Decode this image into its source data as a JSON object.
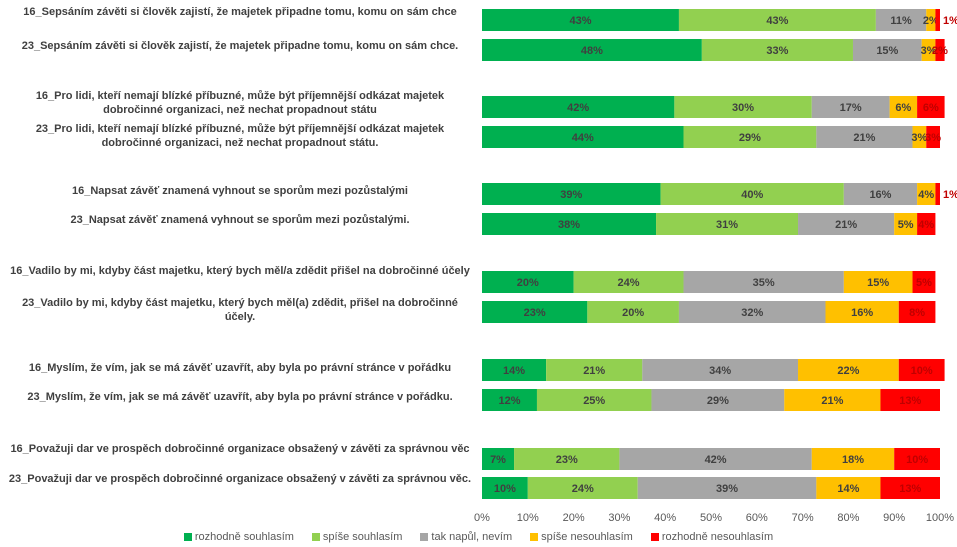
{
  "chart_data": {
    "type": "bar",
    "orientation": "horizontal",
    "stacked": "percent",
    "categories": [
      "16_Sepsáním závěti si člověk zajistí, že majetek připadne tomu, komu on sám chce",
      "23_Sepsáním závěti si člověk zajistí, že majetek připadne tomu, komu on sám chce.",
      "16_Pro lidi, kteří nemají blízké příbuzné, může být příjemnější odkázat majetek dobročinné organizaci, než nechat propadnout státu",
      "23_Pro lidi, kteří nemají blízké příbuzné, může být příjemnější odkázat majetek dobročinné organizaci, než nechat propadnout státu.",
      "16_Napsat závěť znamená vyhnout se sporům mezi pozůstalými",
      "23_Napsat závěť znamená vyhnout se sporům mezi pozůstalými.",
      "16_Vadilo by mi, kdyby část majetku, který bych měl/a zdědit přišel na dobročinné účely",
      "23_Vadilo by mi, kdyby část majetku, který bych měl(a) zdědit, přišel na dobročinné účely.",
      "16_Myslím, že vím, jak se má závěť uzavřít, aby byla po právní stránce v pořádku",
      "23_Myslím, že vím, jak se má závěť uzavřít, aby byla po právní stránce v pořádku.",
      "16_Považuji dar ve prospěch dobročinné organizace obsažený v závěti za správnou věc",
      "23_Považuji dar ve prospěch dobročinné organizace obsažený v závěti za správnou věc."
    ],
    "series": [
      {
        "name": "rozhodně souhlasím",
        "color": "#00b050",
        "values": [
          43,
          48,
          42,
          44,
          39,
          38,
          20,
          23,
          14,
          12,
          7,
          10
        ]
      },
      {
        "name": "spíše souhlasím",
        "color": "#92d050",
        "values": [
          43,
          33,
          30,
          29,
          40,
          31,
          24,
          20,
          21,
          25,
          23,
          24
        ]
      },
      {
        "name": "tak napůl, nevím",
        "color": "#a6a6a6",
        "values": [
          11,
          15,
          17,
          21,
          16,
          21,
          35,
          32,
          34,
          29,
          42,
          39
        ]
      },
      {
        "name": "spíše nesouhlasím",
        "color": "#ffc000",
        "values": [
          2,
          3,
          6,
          3,
          4,
          5,
          15,
          16,
          22,
          21,
          18,
          14
        ]
      },
      {
        "name": "rozhodně nesouhlasím",
        "color": "#ff0000",
        "values": [
          1,
          2,
          6,
          3,
          1,
          4,
          5,
          8,
          10,
          13,
          10,
          13
        ]
      }
    ],
    "xlim": [
      0,
      100
    ],
    "xticks": [
      "0%",
      "10%",
      "20%",
      "30%",
      "40%",
      "50%",
      "60%",
      "70%",
      "80%",
      "90%",
      "100%"
    ],
    "legend_position": "bottom",
    "grid": false
  }
}
